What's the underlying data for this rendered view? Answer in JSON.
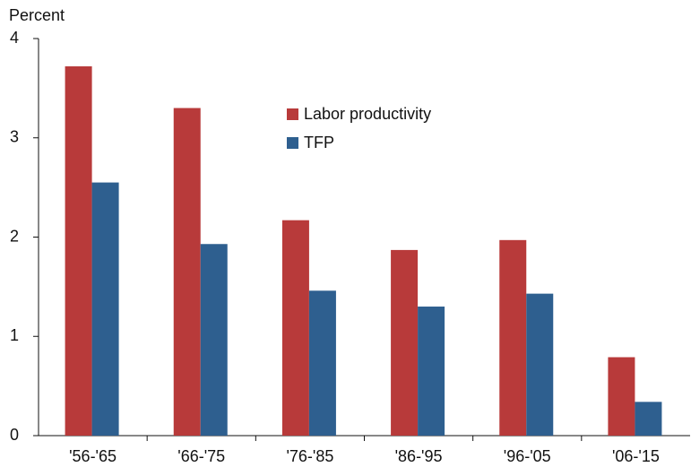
{
  "chart_data": {
    "type": "bar",
    "y_label": "Percent",
    "categories": [
      "'56-'65",
      "'66-'75",
      "'76-'85",
      "'86-'95",
      "'96-'05",
      "'06-'15"
    ],
    "series": [
      {
        "name": "Labor productivity",
        "color": "#b83a3a",
        "values": [
          3.72,
          3.3,
          2.17,
          1.87,
          1.97,
          0.79
        ]
      },
      {
        "name": "TFP",
        "color": "#2e5f8f",
        "values": [
          2.55,
          1.93,
          1.46,
          1.3,
          1.43,
          0.34
        ]
      }
    ],
    "ylim": [
      0,
      4
    ],
    "yticks": [
      0,
      1,
      2,
      3,
      4
    ],
    "grid": false,
    "legend": "top-center"
  }
}
